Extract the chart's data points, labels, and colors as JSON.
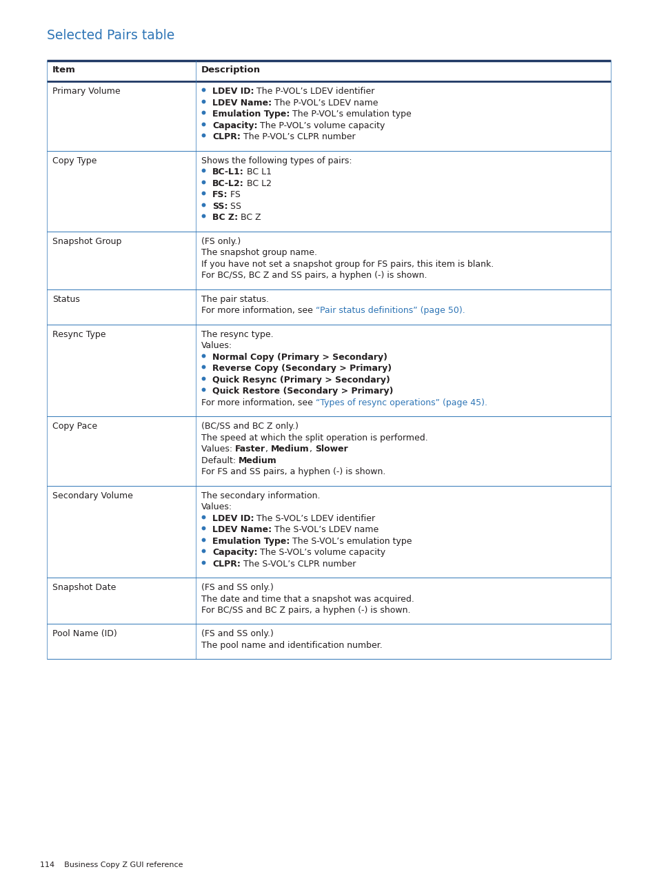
{
  "title": "Selected Pairs table",
  "title_color": "#2E75B6",
  "header_top_color": "#1F3864",
  "header_bottom_color": "#2E75B6",
  "border_color": "#2E75B6",
  "row_line_color": "#2E75B6",
  "bullet_color": "#2E75B6",
  "link_color": "#2E75B6",
  "text_color": "#231F20",
  "bg_color": "#FFFFFF",
  "footer_text": "114    Business Copy Z GUI reference",
  "rows": [
    {
      "item": "Primary Volume",
      "desc_lines": [
        {
          "type": "bullet_bold_normal",
          "bold": "LDEV ID:",
          "normal": " The P-VOL’s LDEV identifier"
        },
        {
          "type": "bullet_bold_normal",
          "bold": "LDEV Name:",
          "normal": " The P-VOL’s LDEV name"
        },
        {
          "type": "bullet_bold_normal",
          "bold": "Emulation Type:",
          "normal": " The P-VOL’s emulation type"
        },
        {
          "type": "bullet_bold_normal",
          "bold": "Capacity:",
          "normal": " The P-VOL’s volume capacity"
        },
        {
          "type": "bullet_bold_normal",
          "bold": "CLPR:",
          "normal": " The P-VOL’s CLPR number"
        }
      ]
    },
    {
      "item": "Copy Type",
      "desc_lines": [
        {
          "type": "normal",
          "text": "Shows the following types of pairs:"
        },
        {
          "type": "bullet_bold_normal",
          "bold": "BC-L1:",
          "normal": " BC L1"
        },
        {
          "type": "bullet_bold_normal",
          "bold": "BC-L2:",
          "normal": " BC L2"
        },
        {
          "type": "bullet_bold_normal",
          "bold": "FS:",
          "normal": " FS"
        },
        {
          "type": "bullet_bold_normal",
          "bold": "SS:",
          "normal": " SS"
        },
        {
          "type": "bullet_bold_normal",
          "bold": "BC Z:",
          "normal": " BC Z"
        }
      ]
    },
    {
      "item": "Snapshot Group",
      "desc_lines": [
        {
          "type": "normal",
          "text": "(FS only.)"
        },
        {
          "type": "normal",
          "text": "The snapshot group name."
        },
        {
          "type": "normal",
          "text": "If you have not set a snapshot group for FS pairs, this item is blank."
        },
        {
          "type": "normal",
          "text": "For BC/SS, BC Z and SS pairs, a hyphen (-) is shown."
        }
      ]
    },
    {
      "item": "Status",
      "desc_lines": [
        {
          "type": "normal",
          "text": "The pair status."
        },
        {
          "type": "normal_link",
          "normal": "For more information, see ",
          "link": "“Pair status definitions” (page 50)."
        }
      ]
    },
    {
      "item": "Resync Type",
      "desc_lines": [
        {
          "type": "normal",
          "text": "The resync type."
        },
        {
          "type": "normal",
          "text": "Values:"
        },
        {
          "type": "bullet_bold",
          "bold": "Normal Copy (Primary > Secondary)"
        },
        {
          "type": "bullet_bold",
          "bold": "Reverse Copy (Secondary > Primary)"
        },
        {
          "type": "bullet_bold",
          "bold": "Quick Resync (Primary > Secondary)"
        },
        {
          "type": "bullet_bold",
          "bold": "Quick Restore (Secondary > Primary)"
        },
        {
          "type": "normal_link",
          "normal": "For more information, see ",
          "link": "“Types of resync operations” (page 45)."
        }
      ]
    },
    {
      "item": "Copy Pace",
      "desc_lines": [
        {
          "type": "normal",
          "text": "(BC/SS and BC Z only.)"
        },
        {
          "type": "normal",
          "text": "The speed at which the split operation is performed."
        },
        {
          "type": "bold_mix",
          "parts": [
            {
              "text": "Values: ",
              "bold": false
            },
            {
              "text": "Faster",
              "bold": true
            },
            {
              "text": ", ",
              "bold": false
            },
            {
              "text": "Medium",
              "bold": true
            },
            {
              "text": ", ",
              "bold": false
            },
            {
              "text": "Slower",
              "bold": true
            }
          ]
        },
        {
          "type": "bold_mix",
          "parts": [
            {
              "text": "Default: ",
              "bold": false
            },
            {
              "text": "Medium",
              "bold": true
            }
          ]
        },
        {
          "type": "normal",
          "text": "For FS and SS pairs, a hyphen (-) is shown."
        }
      ]
    },
    {
      "item": "Secondary Volume",
      "desc_lines": [
        {
          "type": "normal",
          "text": "The secondary information."
        },
        {
          "type": "normal",
          "text": "Values:"
        },
        {
          "type": "bullet_bold_normal",
          "bold": "LDEV ID:",
          "normal": " The S-VOL’s LDEV identifier"
        },
        {
          "type": "bullet_bold_normal",
          "bold": "LDEV Name:",
          "normal": " The S-VOL’s LDEV name"
        },
        {
          "type": "bullet_bold_normal",
          "bold": "Emulation Type:",
          "normal": " The S-VOL’s emulation type"
        },
        {
          "type": "bullet_bold_normal",
          "bold": "Capacity:",
          "normal": " The S-VOL’s volume capacity"
        },
        {
          "type": "bullet_bold_normal",
          "bold": "CLPR:",
          "normal": " The S-VOL’s CLPR number"
        }
      ]
    },
    {
      "item": "Snapshot Date",
      "desc_lines": [
        {
          "type": "normal",
          "text": "(FS and SS only.)"
        },
        {
          "type": "normal",
          "text": "The date and time that a snapshot was acquired."
        },
        {
          "type": "normal",
          "text": "For BC/SS and BC Z pairs, a hyphen (-) is shown."
        }
      ]
    },
    {
      "item": "Pool Name (ID)",
      "desc_lines": [
        {
          "type": "normal",
          "text": "(FS and SS only.)"
        },
        {
          "type": "normal",
          "text": "The pool name and identification number."
        }
      ]
    }
  ]
}
